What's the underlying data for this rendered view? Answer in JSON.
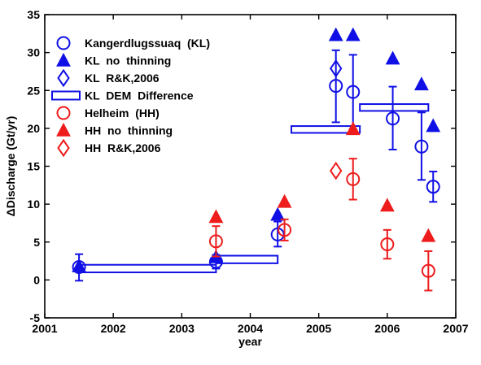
{
  "colors": {
    "blue": "#1010e6",
    "red": "#ee1c1c",
    "axis": "#000000"
  },
  "chart_data": {
    "type": "scatter",
    "xlabel": "year",
    "ylabel": "ΔDischarge  (Gt/yr)",
    "xlim": [
      2001,
      2007
    ],
    "ylim": [
      -5,
      35
    ],
    "xticks": [
      2001,
      2002,
      2003,
      2004,
      2005,
      2006,
      2007
    ],
    "yticks": [
      -5,
      0,
      5,
      10,
      15,
      20,
      25,
      30,
      35
    ],
    "legend_position": "top-left",
    "series": [
      {
        "name": "Kangerdlugssuaq  (KL)",
        "marker": "circle",
        "color": "blue",
        "points": [
          {
            "x": 2001.5,
            "y": 1.7,
            "lo": -0.1,
            "hi": 3.4
          },
          {
            "x": 2003.5,
            "y": 2.4,
            "lo": 1.5,
            "hi": 3.3
          },
          {
            "x": 2004.4,
            "y": 6.0,
            "lo": 4.4,
            "hi": 7.7
          },
          {
            "x": 2005.25,
            "y": 25.6,
            "lo": 20.8,
            "hi": 30.3
          },
          {
            "x": 2005.5,
            "y": 24.8,
            "lo": 19.9,
            "hi": 29.7
          },
          {
            "x": 2006.08,
            "y": 21.3,
            "lo": 17.2,
            "hi": 25.5
          },
          {
            "x": 2006.5,
            "y": 17.6,
            "lo": 13.2,
            "hi": 22.1
          },
          {
            "x": 2006.67,
            "y": 12.3,
            "lo": 10.3,
            "hi": 14.3
          }
        ]
      },
      {
        "name": "KL  no  thinning",
        "marker": "triangle",
        "color": "blue",
        "points": [
          {
            "x": 2001.5,
            "y": 1.8
          },
          {
            "x": 2003.5,
            "y": 3.0
          },
          {
            "x": 2004.4,
            "y": 8.6
          },
          {
            "x": 2005.25,
            "y": 32.3
          },
          {
            "x": 2005.5,
            "y": 32.3
          },
          {
            "x": 2006.08,
            "y": 29.2
          },
          {
            "x": 2006.5,
            "y": 25.8
          },
          {
            "x": 2006.67,
            "y": 20.3
          }
        ]
      },
      {
        "name": "KL  R&K,2006",
        "marker": "diamond",
        "color": "blue",
        "points": [
          {
            "x": 2005.25,
            "y": 27.9
          }
        ]
      },
      {
        "name": "KL  DEM  Difference",
        "marker": "rect",
        "color": "blue",
        "boxes": [
          {
            "x0": 2001.5,
            "x1": 2003.5,
            "y0": 1.0,
            "y1": 2.0
          },
          {
            "x0": 2003.5,
            "x1": 2004.4,
            "y0": 2.2,
            "y1": 3.2
          },
          {
            "x0": 2004.6,
            "x1": 2005.6,
            "y0": 19.4,
            "y1": 20.3
          },
          {
            "x0": 2005.6,
            "x1": 2006.6,
            "y0": 22.3,
            "y1": 23.2
          }
        ]
      },
      {
        "name": "Helheim  (HH)",
        "marker": "circle",
        "color": "red",
        "points": [
          {
            "x": 2003.5,
            "y": 5.1,
            "lo": 3.1,
            "hi": 7.1
          },
          {
            "x": 2004.5,
            "y": 6.6,
            "lo": 5.2,
            "hi": 8.0
          },
          {
            "x": 2005.5,
            "y": 13.3,
            "lo": 10.6,
            "hi": 16.0
          },
          {
            "x": 2006.0,
            "y": 4.7,
            "lo": 2.8,
            "hi": 6.6
          },
          {
            "x": 2006.6,
            "y": 1.2,
            "lo": -1.4,
            "hi": 3.8
          }
        ]
      },
      {
        "name": "HH  no  thinning",
        "marker": "triangle",
        "color": "red",
        "points": [
          {
            "x": 2003.5,
            "y": 8.3
          },
          {
            "x": 2004.5,
            "y": 10.3
          },
          {
            "x": 2005.5,
            "y": 19.9
          },
          {
            "x": 2006.0,
            "y": 9.8
          },
          {
            "x": 2006.6,
            "y": 5.8
          }
        ]
      },
      {
        "name": "HH  R&K,2006",
        "marker": "diamond",
        "color": "red",
        "points": [
          {
            "x": 2005.25,
            "y": 14.4
          }
        ]
      }
    ]
  }
}
